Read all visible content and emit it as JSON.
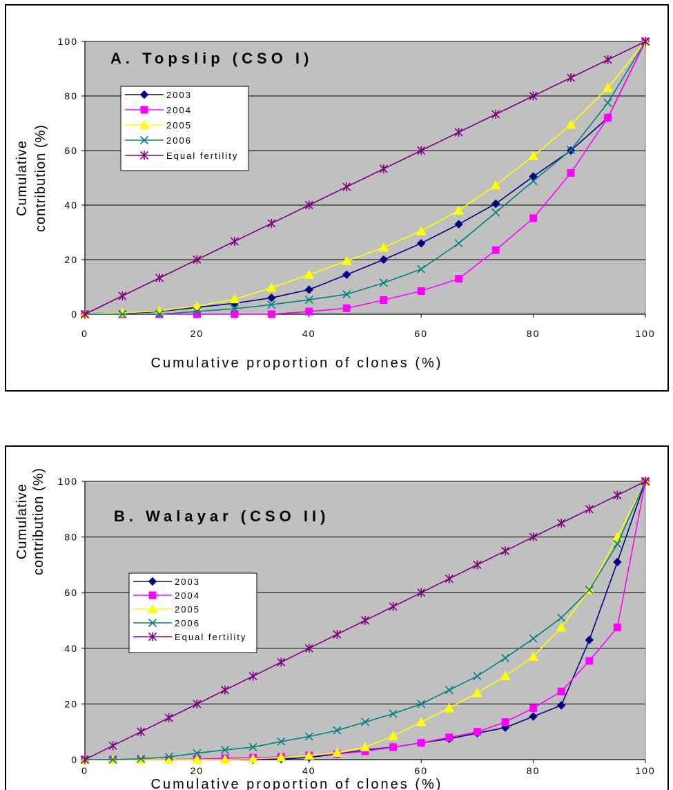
{
  "chart_data": [
    {
      "type": "line",
      "title": "A. Topslip (CSO I)",
      "xlabel": "Cumulative proportion of clones (%)",
      "ylabel_lines": [
        "Cumulative",
        "contribution (%)"
      ],
      "xlim": [
        0,
        100
      ],
      "ylim": [
        0,
        100
      ],
      "xticks": [
        "0",
        "20",
        "40",
        "60",
        "80",
        "100"
      ],
      "yticks": [
        "0",
        "20",
        "40",
        "60",
        "80",
        "100"
      ],
      "grid": "horizontal",
      "plot_background": "#C0C0C0",
      "legend_position": "upper-left",
      "x": [
        0,
        6.7,
        13.3,
        20,
        26.7,
        33.3,
        40,
        46.7,
        53.3,
        60,
        66.7,
        73.3,
        80,
        86.7,
        93.3,
        100
      ],
      "series": [
        {
          "name": "2003",
          "color": "#000080",
          "marker": "diamond",
          "values": [
            0,
            0.3,
            1,
            2.5,
            4,
            6,
            9,
            14.5,
            20,
            26,
            33,
            40.5,
            50.5,
            60,
            72,
            100
          ]
        },
        {
          "name": "2004",
          "color": "#FF00FF",
          "marker": "square",
          "values": [
            0,
            0,
            0,
            0,
            0,
            0,
            1,
            2.2,
            5.2,
            8.5,
            13,
            23.5,
            35.2,
            51.8,
            72,
            100
          ]
        },
        {
          "name": "2005",
          "color": "#FFFF00",
          "marker": "triangle",
          "values": [
            0,
            0.5,
            1.2,
            3,
            5.5,
            9.7,
            14.5,
            19.5,
            24.5,
            30.5,
            38,
            47.3,
            58,
            69.5,
            83,
            100
          ]
        },
        {
          "name": "2006",
          "color": "#008080",
          "marker": "x",
          "values": [
            0,
            0,
            0,
            1,
            2,
            3.5,
            5.3,
            7.3,
            11.5,
            16.5,
            26,
            37.3,
            48.8,
            60.2,
            77.5,
            100
          ]
        },
        {
          "name": "Equal fertility",
          "color": "#800080",
          "marker": "star",
          "values": [
            0,
            6.7,
            13.3,
            20,
            26.7,
            33.3,
            40,
            46.7,
            53.3,
            60,
            66.7,
            73.3,
            80,
            86.7,
            93.3,
            100
          ]
        }
      ]
    },
    {
      "type": "line",
      "title": "B. Walayar (CSO II)",
      "xlabel": "Cumulative proportion of clones (%)",
      "ylabel_lines": [
        "Cumulative",
        "contribution (%)"
      ],
      "xlim": [
        0,
        100
      ],
      "ylim": [
        0,
        100
      ],
      "xticks": [
        "0",
        "20",
        "40",
        "60",
        "80",
        "100"
      ],
      "yticks": [
        "0",
        "20",
        "40",
        "60",
        "80",
        "100"
      ],
      "grid": "horizontal",
      "plot_background": "#C0C0C0",
      "legend_position": "middle-left",
      "x": [
        0,
        5,
        10,
        15,
        20,
        25,
        30,
        35,
        40,
        45,
        50,
        55,
        60,
        65,
        70,
        75,
        80,
        85,
        90,
        95,
        100
      ],
      "series": [
        {
          "name": "2003",
          "color": "#000080",
          "marker": "diamond",
          "values": [
            0,
            0,
            0,
            0,
            0,
            0,
            0,
            0.2,
            0.8,
            2,
            3.5,
            4.5,
            6,
            7.5,
            9.5,
            11.5,
            15.5,
            19.5,
            43,
            71,
            100
          ]
        },
        {
          "name": "2004",
          "color": "#FF00FF",
          "marker": "square",
          "values": [
            0,
            0,
            0,
            0,
            0.2,
            0.5,
            0.7,
            1,
            1.5,
            2,
            3,
            4.5,
            6,
            8,
            10,
            13.5,
            18.5,
            24.5,
            35.5,
            47.5,
            100
          ]
        },
        {
          "name": "2005",
          "color": "#FFFF00",
          "marker": "triangle",
          "values": [
            0,
            0,
            0,
            0,
            0,
            0,
            0.3,
            0.8,
            1.5,
            2.5,
            4.5,
            8.5,
            13.5,
            18.5,
            24,
            30,
            37,
            47.5,
            61,
            80,
            100
          ]
        },
        {
          "name": "2006",
          "color": "#008080",
          "marker": "x",
          "values": [
            0,
            0,
            0.3,
            1,
            2.3,
            3.5,
            4.5,
            6.5,
            8.3,
            10.5,
            13.5,
            16.5,
            20,
            25,
            30,
            36.5,
            43.5,
            51,
            61,
            77.5,
            100
          ]
        },
        {
          "name": "Equal fertility",
          "color": "#800080",
          "marker": "star",
          "values": [
            0,
            5,
            10,
            15,
            20,
            25,
            30,
            35,
            40,
            45,
            50,
            55,
            60,
            65,
            70,
            75,
            80,
            85,
            90,
            95,
            100
          ]
        }
      ]
    }
  ]
}
